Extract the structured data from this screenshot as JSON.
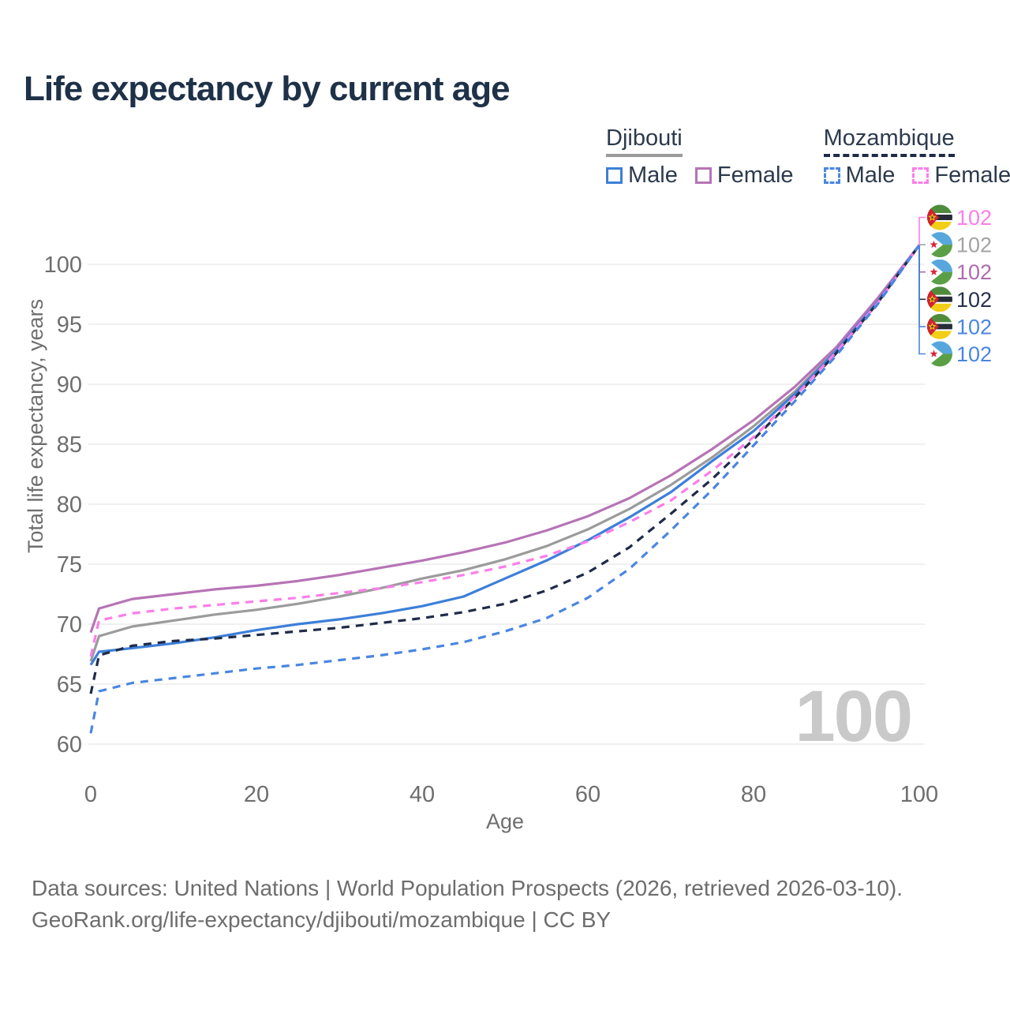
{
  "title": "Life expectancy by current age",
  "watermark_age": "100",
  "legend": {
    "groups": [
      {
        "label": "Djibouti",
        "line_style": "solid",
        "underline_color": "#9a9a9a",
        "items": [
          {
            "label": "Male",
            "color": "#3d7fd9"
          },
          {
            "label": "Female",
            "color": "#b674b6"
          }
        ]
      },
      {
        "label": "Mozambique",
        "line_style": "dashed",
        "underline_color": "#1f2b48",
        "items": [
          {
            "label": "Male",
            "color": "#4a86e0"
          },
          {
            "label": "Female",
            "color": "#fb7ee8"
          }
        ]
      }
    ]
  },
  "chart_data": {
    "type": "line",
    "title": "Life expectancy by current age",
    "xlabel": "Age",
    "ylabel": "Total life expectancy, years",
    "xlim": [
      0,
      100
    ],
    "ylim": [
      60,
      103
    ],
    "xticks": [
      0,
      20,
      40,
      60,
      80,
      100
    ],
    "yticks": [
      60,
      65,
      70,
      75,
      80,
      85,
      90,
      95,
      100
    ],
    "grid": "horizontal",
    "legend_position": "top-right",
    "x": [
      0,
      1,
      5,
      10,
      15,
      20,
      25,
      30,
      35,
      40,
      45,
      50,
      55,
      60,
      65,
      70,
      75,
      80,
      85,
      90,
      95,
      100
    ],
    "series": [
      {
        "id": "djibouti-female",
        "name": "Djibouti Female",
        "country": "Djibouti",
        "sex": "Female",
        "line": "solid",
        "color": "#b674b6",
        "values": [
          69.3,
          71.3,
          72.1,
          72.5,
          72.9,
          73.2,
          73.6,
          74.1,
          74.7,
          75.3,
          76.0,
          76.8,
          77.8,
          79.0,
          80.5,
          82.4,
          84.6,
          87.0,
          89.8,
          93.1,
          97.2,
          101.6
        ]
      },
      {
        "id": "djibouti-all",
        "name": "Djibouti (all)",
        "country": "Djibouti",
        "sex": "All",
        "line": "solid",
        "color": "#9b9b9b",
        "values": [
          66.9,
          69.0,
          69.8,
          70.3,
          70.8,
          71.2,
          71.7,
          72.3,
          73.0,
          73.8,
          74.5,
          75.4,
          76.5,
          77.9,
          79.6,
          81.6,
          83.9,
          86.5,
          89.4,
          92.9,
          97.0,
          101.6
        ]
      },
      {
        "id": "djibouti-male",
        "name": "Djibouti Male",
        "country": "Djibouti",
        "sex": "Male",
        "line": "solid",
        "color": "#3d7fd9",
        "values": [
          66.6,
          67.7,
          68.0,
          68.4,
          68.9,
          69.5,
          70.0,
          70.4,
          70.9,
          71.5,
          72.3,
          73.8,
          75.3,
          77.0,
          78.9,
          81.0,
          83.6,
          86.1,
          89.2,
          92.8,
          96.9,
          101.6
        ]
      },
      {
        "id": "mozambique-female",
        "name": "Mozambique Female",
        "country": "Mozambique",
        "sex": "Female",
        "line": "dashed",
        "color": "#fb7ee8",
        "values": [
          67.3,
          70.3,
          70.9,
          71.3,
          71.6,
          71.9,
          72.2,
          72.6,
          73.0,
          73.5,
          74.1,
          74.8,
          75.7,
          76.9,
          78.5,
          80.3,
          82.8,
          85.6,
          89.0,
          92.7,
          96.8,
          101.6
        ]
      },
      {
        "id": "mozambique-all",
        "name": "Mozambique (all)",
        "country": "Mozambique",
        "sex": "All",
        "line": "dashed",
        "color": "#1f2b48",
        "values": [
          64.2,
          67.4,
          68.2,
          68.6,
          68.8,
          69.1,
          69.4,
          69.7,
          70.1,
          70.5,
          71.0,
          71.7,
          72.8,
          74.3,
          76.4,
          79.2,
          82.1,
          85.4,
          88.9,
          92.6,
          96.8,
          101.6
        ]
      },
      {
        "id": "mozambique-male",
        "name": "Mozambique Male",
        "country": "Mozambique",
        "sex": "Male",
        "line": "dashed",
        "color": "#4a86e0",
        "values": [
          60.9,
          64.4,
          65.1,
          65.5,
          65.9,
          66.3,
          66.6,
          67.0,
          67.4,
          67.9,
          68.5,
          69.4,
          70.5,
          72.2,
          74.6,
          77.8,
          81.2,
          84.9,
          88.6,
          92.4,
          96.7,
          101.6
        ]
      }
    ],
    "end_labels": [
      {
        "series": "mozambique-female",
        "flag": "mozambique",
        "value": "102",
        "color": "#fb7ee8"
      },
      {
        "series": "djibouti-all",
        "flag": "djibouti",
        "value": "102",
        "color": "#a3a3a3"
      },
      {
        "series": "djibouti-female",
        "flag": "djibouti",
        "value": "102",
        "color": "#ad6cae"
      },
      {
        "series": "mozambique-all",
        "flag": "mozambique",
        "value": "102",
        "color": "#25314d"
      },
      {
        "series": "mozambique-male",
        "flag": "mozambique",
        "value": "102",
        "color": "#4a86e0"
      },
      {
        "series": "djibouti-male",
        "flag": "djibouti",
        "value": "102",
        "color": "#4a86e0"
      }
    ]
  },
  "footer": {
    "line1": "Data sources: United Nations | World Population Prospects (2026, retrieved 2026-03-10).",
    "line2": "GeoRank.org/life-expectancy/djibouti/mozambique | CC BY"
  }
}
